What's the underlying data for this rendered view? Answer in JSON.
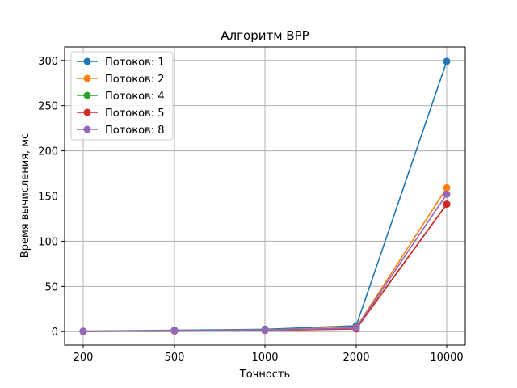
{
  "chart_data": {
    "type": "line",
    "title": "Алгоритм BPP",
    "xlabel": "Точность",
    "ylabel": "Время вычисления, мс",
    "categories": [
      "200",
      "500",
      "1000",
      "2000",
      "10000"
    ],
    "ylim": [
      -15,
      315
    ],
    "yticks": [
      "0",
      "50",
      "100",
      "150",
      "200",
      "250",
      "300"
    ],
    "grid": true,
    "legend_position": "top-left",
    "series": [
      {
        "name": "Потоков: 1",
        "color": "#1f77b4",
        "values": [
          0.5,
          1.5,
          2.5,
          6.5,
          299
        ]
      },
      {
        "name": "Потоков: 2",
        "color": "#ff7f0e",
        "values": [
          0.3,
          1.0,
          1.8,
          4.5,
          159
        ]
      },
      {
        "name": "Потоков: 4",
        "color": "#2ca02c",
        "values": [
          0.3,
          0.8,
          1.5,
          3.5,
          141
        ]
      },
      {
        "name": "Потоков: 5",
        "color": "#d62728",
        "values": [
          0.3,
          0.7,
          1.3,
          3.0,
          141
        ]
      },
      {
        "name": "Потоков: 8",
        "color": "#9467bd",
        "values": [
          0.4,
          1.0,
          1.5,
          4.0,
          152
        ]
      }
    ]
  }
}
